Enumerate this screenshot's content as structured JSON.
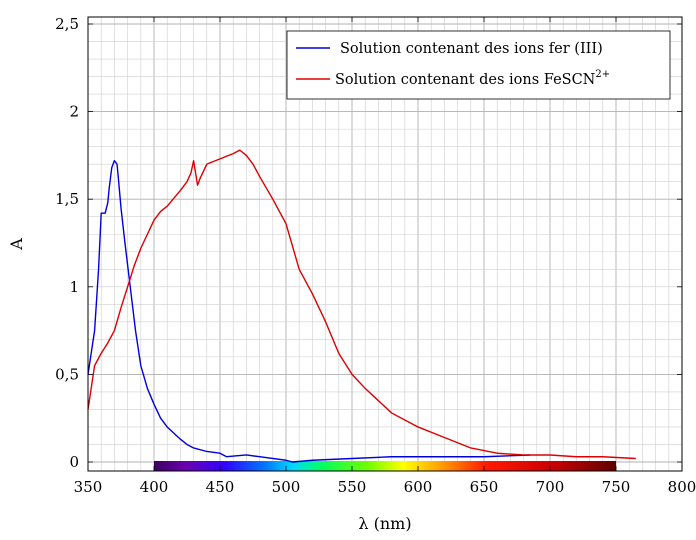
{
  "chart_data": {
    "type": "line",
    "xlabel": "λ (nm)",
    "ylabel": "A",
    "xlim": [
      350,
      800
    ],
    "ylim": [
      0,
      2.5
    ],
    "x_ticks": [
      "350",
      "400",
      "450",
      "500",
      "550",
      "600",
      "650",
      "700",
      "750",
      "800"
    ],
    "y_ticks": [
      "0",
      "0,5",
      "1",
      "1,5",
      "2",
      "2,5"
    ],
    "grid": true,
    "legend_position": "top-right",
    "spectrum_bar": {
      "from": 400,
      "to": 750
    },
    "series": [
      {
        "name": "Solution contenant des ions fer (III)",
        "color": "#0000dd",
        "x": [
          350,
          352,
          355,
          358,
          360,
          362,
          363,
          365,
          366,
          368,
          370,
          372,
          373,
          375,
          378,
          382,
          386,
          390,
          395,
          400,
          405,
          410,
          420,
          425,
          430,
          440,
          450,
          455,
          470,
          480,
          500,
          505,
          520,
          550,
          580,
          600,
          620,
          650,
          685
        ],
        "y": [
          0.5,
          0.6,
          0.75,
          1.1,
          1.42,
          1.42,
          1.42,
          1.48,
          1.56,
          1.68,
          1.72,
          1.7,
          1.62,
          1.45,
          1.25,
          1.0,
          0.75,
          0.55,
          0.42,
          0.33,
          0.25,
          0.2,
          0.13,
          0.1,
          0.08,
          0.06,
          0.05,
          0.03,
          0.04,
          0.03,
          0.01,
          0.0,
          0.01,
          0.02,
          0.03,
          0.03,
          0.03,
          0.03,
          0.04
        ]
      },
      {
        "name": "Solution contenant des ions FeSCN",
        "name_superscript": "2+",
        "color": "#dd0000",
        "x": [
          350,
          352,
          355,
          360,
          365,
          370,
          375,
          380,
          385,
          390,
          395,
          400,
          405,
          410,
          420,
          425,
          428,
          430,
          433,
          435,
          440,
          450,
          460,
          465,
          470,
          475,
          480,
          490,
          500,
          510,
          520,
          530,
          540,
          550,
          560,
          570,
          580,
          590,
          600,
          620,
          640,
          660,
          680,
          700,
          720,
          740,
          765
        ],
        "y": [
          0.3,
          0.4,
          0.55,
          0.62,
          0.68,
          0.75,
          0.88,
          1.0,
          1.12,
          1.22,
          1.3,
          1.38,
          1.43,
          1.46,
          1.55,
          1.6,
          1.65,
          1.72,
          1.58,
          1.62,
          1.7,
          1.73,
          1.76,
          1.78,
          1.75,
          1.7,
          1.63,
          1.5,
          1.36,
          1.1,
          0.96,
          0.8,
          0.62,
          0.5,
          0.42,
          0.35,
          0.28,
          0.24,
          0.2,
          0.14,
          0.08,
          0.05,
          0.04,
          0.04,
          0.03,
          0.03,
          0.02
        ]
      }
    ]
  }
}
